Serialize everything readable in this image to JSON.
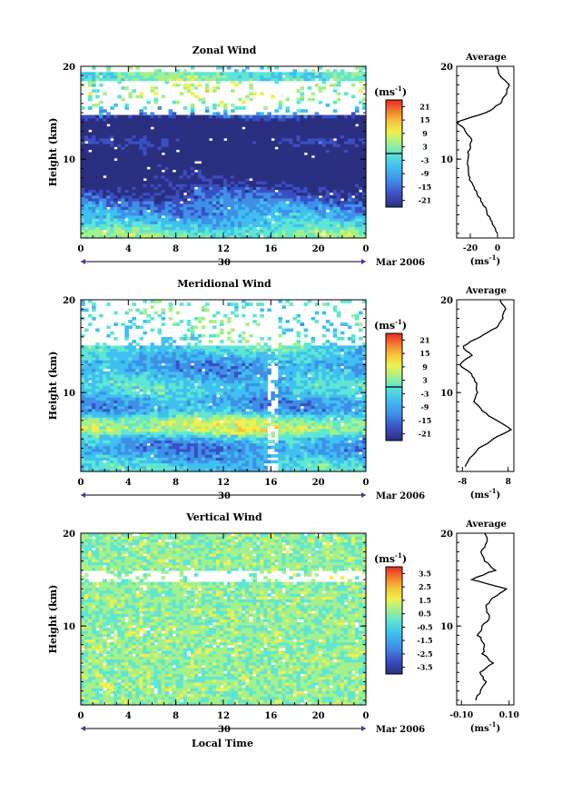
{
  "figure": {
    "xlabel": "Local Time",
    "date_label": "Mar 2006",
    "day_label": "30",
    "unit_label": "(ms",
    "unit_exp": "-1",
    "unit_close": ")",
    "profile_title": "Average"
  },
  "chart_data": [
    {
      "type": "heatmap",
      "title": "Zonal Wind",
      "xlabel": "",
      "ylabel": "Height (km)",
      "x_ticks": [
        "0",
        "4",
        "8",
        "12",
        "16",
        "20",
        "0"
      ],
      "y_ticks": [
        "10",
        "20"
      ],
      "xlim": [
        0,
        24
      ],
      "ylim": [
        1.5,
        20
      ],
      "colorbar": {
        "ticks": [
          "21",
          "15",
          "9",
          "3",
          "-3",
          "-9",
          "-15",
          "-21"
        ],
        "tick_values": [
          21,
          15,
          9,
          3,
          -3,
          -9,
          -15,
          -21
        ],
        "range": [
          -24,
          24
        ],
        "zero_line": 0
      },
      "field": {
        "approx_profile_height_km": [
          2,
          3,
          4,
          5,
          6,
          7,
          8,
          9,
          10,
          11,
          12,
          13,
          14,
          15,
          16,
          17,
          18,
          19
        ],
        "approx_profile_wind_ms": [
          0,
          -6,
          -10,
          -12,
          -16,
          -20,
          -23,
          -25,
          -27,
          -25,
          -20,
          -28,
          -30,
          -10,
          0,
          4,
          2,
          -2
        ],
        "data_gaps_km": [
          [
            14.8,
            18.5
          ],
          [
            19.5,
            20
          ]
        ]
      },
      "profile": {
        "title": "Average",
        "x_ticks": [
          "-20",
          "0"
        ],
        "xlim": [
          -30,
          12
        ],
        "heights_km": [
          2,
          3,
          4,
          5,
          6,
          7,
          8,
          9,
          10,
          11,
          12,
          13,
          14,
          15,
          16,
          17,
          18,
          19,
          20
        ],
        "values": [
          0,
          -3,
          -7,
          -10,
          -14,
          -18,
          -21,
          -22,
          -22,
          -21,
          -19,
          -23,
          -30,
          -8,
          2,
          6,
          8,
          2,
          0
        ]
      }
    },
    {
      "type": "heatmap",
      "title": "Meridional Wind",
      "xlabel": "",
      "ylabel": "Height (km)",
      "x_ticks": [
        "0",
        "4",
        "8",
        "12",
        "16",
        "20",
        "0"
      ],
      "y_ticks": [
        "10",
        "20"
      ],
      "xlim": [
        0,
        24
      ],
      "ylim": [
        1.5,
        20
      ],
      "colorbar": {
        "ticks": [
          "21",
          "15",
          "9",
          "3",
          "-3",
          "-9",
          "-15",
          "-21"
        ],
        "tick_values": [
          21,
          15,
          9,
          3,
          -3,
          -9,
          -15,
          -21
        ],
        "range": [
          -24,
          24
        ],
        "zero_line": 0
      },
      "field": {
        "approx_profile_height_km": [
          2,
          3,
          4,
          5,
          6,
          7,
          8,
          9,
          10,
          11,
          12,
          13,
          14,
          15
        ],
        "approx_profile_wind_ms": [
          -5,
          -9,
          -12,
          -8,
          5,
          3,
          -8,
          -11,
          -6,
          -5,
          -9,
          -11,
          -7,
          -3
        ],
        "data_gaps_km": [
          [
            15.2,
            20
          ]
        ]
      },
      "profile": {
        "title": "Average",
        "x_ticks": [
          "-8",
          "8"
        ],
        "xlim": [
          -10,
          10
        ],
        "heights_km": [
          2,
          3,
          4,
          5,
          6,
          7,
          8,
          9,
          10,
          11,
          12,
          13,
          14,
          15,
          16,
          17,
          18,
          19,
          20
        ],
        "values": [
          -7,
          -5,
          -2,
          3,
          9,
          4,
          -1,
          -4,
          -3,
          -3,
          -5,
          -9,
          -5,
          -8,
          -2,
          4,
          6,
          7,
          5
        ]
      }
    },
    {
      "type": "heatmap",
      "title": "Vertical Wind",
      "xlabel": "Local Time",
      "ylabel": "Height (km)",
      "x_ticks": [
        "0",
        "4",
        "8",
        "12",
        "16",
        "20",
        "0"
      ],
      "y_ticks": [
        "10",
        "20"
      ],
      "xlim": [
        0,
        24
      ],
      "ylim": [
        1.5,
        20
      ],
      "colorbar": {
        "ticks": [
          "3.5",
          "2.5",
          "1.5",
          "0.5",
          "-0.5",
          "-1.5",
          "-2.5",
          "-3.5"
        ],
        "tick_values": [
          3.5,
          2.5,
          1.5,
          0.5,
          -0.5,
          -1.5,
          -2.5,
          -3.5
        ],
        "range": [
          -4,
          4
        ]
      },
      "field": {
        "approx_profile_height_km": [
          2,
          4,
          6,
          8,
          10,
          12,
          14,
          16,
          18,
          20
        ],
        "approx_profile_wind_ms": [
          0,
          0,
          0,
          0,
          0,
          0,
          0,
          0,
          0,
          0
        ],
        "data_gaps_km": [
          [
            14.8,
            16.0
          ]
        ]
      },
      "profile": {
        "title": "Average",
        "x_ticks": [
          "-0.10",
          "0.10"
        ],
        "xlim": [
          -0.12,
          0.12
        ],
        "heights_km": [
          2,
          3,
          4,
          5,
          6,
          7,
          8,
          9,
          10,
          11,
          12,
          13,
          14,
          15,
          16,
          17,
          18,
          19,
          20
        ],
        "values": [
          -0.04,
          -0.02,
          0.0,
          -0.02,
          0.03,
          -0.01,
          0.0,
          -0.03,
          -0.01,
          0.02,
          0.0,
          0.03,
          0.09,
          -0.06,
          0.04,
          0.0,
          -0.02,
          0.01,
          0.0
        ]
      }
    }
  ]
}
